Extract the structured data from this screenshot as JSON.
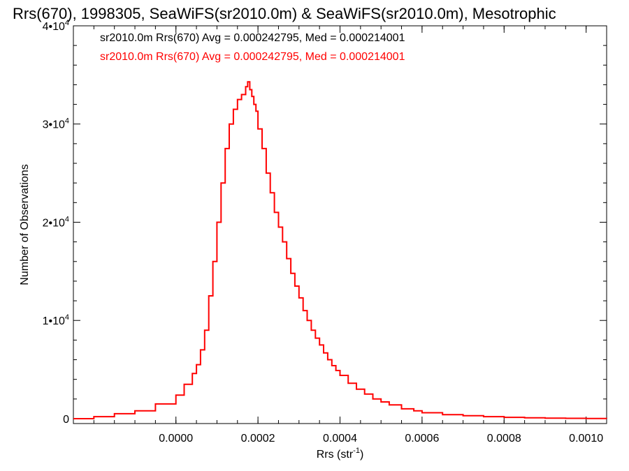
{
  "chart_data": {
    "type": "line",
    "title": "Rrs(670), 1998305, SeaWiFS(sr2010.0m) & SeaWiFS(sr2010.0m), Mesotrophic",
    "xlabel": "Rrs (str",
    "xlabel_exp": "-1",
    "xlabel_suffix": ")",
    "ylabel": "Number of Observations",
    "xlim": [
      -0.00025,
      0.00105
    ],
    "ylim": [
      -500,
      40000
    ],
    "x_ticks": [
      0.0,
      0.0002,
      0.0004,
      0.0006,
      0.0008,
      0.001
    ],
    "x_tick_labels": [
      "0.0000",
      "0.0002",
      "0.0004",
      "0.0006",
      "0.0008",
      "0.0010"
    ],
    "y_ticks": [
      0,
      10000,
      20000,
      30000,
      40000
    ],
    "y_tick_mantissa": [
      "0",
      "1•10",
      "2•10",
      "3•10",
      "4•10"
    ],
    "y_tick_exp": [
      "",
      "4",
      "4",
      "4",
      "4"
    ],
    "legend": [
      {
        "text": "sr2010.0m Rrs(670) Avg = 0.000242795, Med = 0.000214001",
        "color": "#000000"
      },
      {
        "text": "sr2010.0m Rrs(670) Avg = 0.000242795, Med = 0.000214001",
        "color": "#ff0000"
      }
    ],
    "series": [
      {
        "color": "#ff0000",
        "step": true,
        "x": [
          -0.00025,
          -0.0002,
          -0.00015,
          -0.0001,
          -5e-05,
          0.0,
          2e-05,
          4e-05,
          5e-05,
          6e-05,
          7e-05,
          8e-05,
          9e-05,
          0.0001,
          0.00011,
          0.00012,
          0.00013,
          0.00014,
          0.00015,
          0.00016,
          0.00017,
          0.000175,
          0.00018,
          0.000185,
          0.00019,
          0.000195,
          0.0002,
          0.00021,
          0.00022,
          0.00023,
          0.00024,
          0.00025,
          0.00026,
          0.00027,
          0.00028,
          0.00029,
          0.0003,
          0.00031,
          0.00032,
          0.00033,
          0.00034,
          0.00035,
          0.00036,
          0.00037,
          0.00038,
          0.00039,
          0.0004,
          0.00042,
          0.00044,
          0.00046,
          0.00048,
          0.0005,
          0.00052,
          0.00055,
          0.00058,
          0.0006,
          0.00065,
          0.0007,
          0.00075,
          0.0008,
          0.00085,
          0.0009,
          0.00095,
          0.001,
          0.00105
        ],
        "values": [
          0,
          200,
          500,
          800,
          1500,
          2400,
          3500,
          4600,
          5500,
          7000,
          9000,
          12500,
          16000,
          20000,
          24000,
          27500,
          30000,
          31500,
          32500,
          33000,
          33800,
          34300,
          33500,
          32800,
          32000,
          31300,
          29500,
          27500,
          25000,
          23000,
          21000,
          19500,
          18000,
          16300,
          14800,
          13500,
          12300,
          11000,
          10000,
          9000,
          8200,
          7500,
          6700,
          6000,
          5400,
          4900,
          4400,
          3600,
          3000,
          2500,
          2000,
          1700,
          1400,
          1000,
          800,
          600,
          400,
          300,
          200,
          130,
          80,
          50,
          30,
          20,
          10
        ]
      }
    ]
  }
}
